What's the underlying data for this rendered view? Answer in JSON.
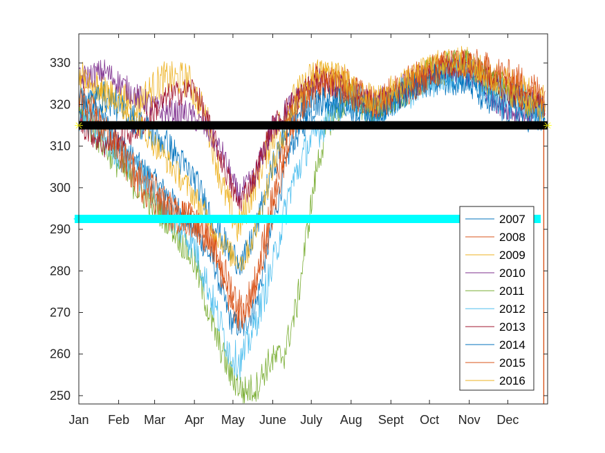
{
  "chart_data": {
    "type": "line",
    "title": "",
    "xlabel": "",
    "ylabel": "",
    "x_ticks": [
      "Jan",
      "Feb",
      "Mar",
      "Apr",
      "May",
      "June",
      "July",
      "Aug",
      "Sept",
      "Oct",
      "Nov",
      "Dec"
    ],
    "y_ticks": [
      250,
      260,
      270,
      280,
      290,
      300,
      310,
      320,
      330
    ],
    "xlim_days": [
      0,
      365
    ],
    "ylim": [
      248,
      337
    ],
    "grid": false,
    "legend_position": "bottom-right",
    "x_unit": "day of year",
    "series": [
      {
        "name": "2007",
        "color": "#0072BD",
        "points": [
          [
            0,
            322
          ],
          [
            20,
            316
          ],
          [
            45,
            306
          ],
          [
            70,
            298
          ],
          [
            90,
            290
          ],
          [
            105,
            282
          ],
          [
            118,
            268
          ],
          [
            128,
            266
          ],
          [
            138,
            272
          ],
          [
            150,
            290
          ],
          [
            165,
            310
          ],
          [
            185,
            320
          ],
          [
            205,
            322
          ],
          [
            230,
            318
          ],
          [
            250,
            322
          ],
          [
            275,
            326
          ],
          [
            300,
            328
          ],
          [
            320,
            324
          ],
          [
            340,
            322
          ],
          [
            363,
            318
          ]
        ]
      },
      {
        "name": "2008",
        "color": "#D95319",
        "points": [
          [
            0,
            320
          ],
          [
            20,
            314
          ],
          [
            45,
            304
          ],
          [
            70,
            296
          ],
          [
            90,
            292
          ],
          [
            105,
            286
          ],
          [
            118,
            272
          ],
          [
            128,
            268
          ],
          [
            138,
            276
          ],
          [
            150,
            292
          ],
          [
            165,
            314
          ],
          [
            185,
            324
          ],
          [
            205,
            326
          ],
          [
            230,
            320
          ],
          [
            250,
            322
          ],
          [
            275,
            328
          ],
          [
            300,
            330
          ],
          [
            320,
            326
          ],
          [
            340,
            324
          ],
          [
            363,
            320
          ]
        ]
      },
      {
        "name": "2009",
        "color": "#EDB120",
        "points": [
          [
            0,
            326
          ],
          [
            20,
            322
          ],
          [
            45,
            320
          ],
          [
            65,
            326
          ],
          [
            85,
            326
          ],
          [
            100,
            316
          ],
          [
            112,
            300
          ],
          [
            124,
            290
          ],
          [
            136,
            300
          ],
          [
            150,
            312
          ],
          [
            165,
            320
          ],
          [
            185,
            328
          ],
          [
            205,
            326
          ],
          [
            230,
            320
          ],
          [
            250,
            324
          ],
          [
            275,
            328
          ],
          [
            300,
            330
          ],
          [
            320,
            326
          ],
          [
            340,
            324
          ],
          [
            363,
            320
          ]
        ]
      },
      {
        "name": "2010",
        "color": "#7E2F8E",
        "points": [
          [
            0,
            326
          ],
          [
            20,
            328
          ],
          [
            45,
            322
          ],
          [
            65,
            318
          ],
          [
            85,
            318
          ],
          [
            100,
            314
          ],
          [
            112,
            308
          ],
          [
            124,
            298
          ],
          [
            136,
            302
          ],
          [
            150,
            314
          ],
          [
            165,
            320
          ],
          [
            185,
            326
          ],
          [
            205,
            324
          ],
          [
            230,
            320
          ],
          [
            250,
            324
          ],
          [
            275,
            328
          ],
          [
            300,
            328
          ],
          [
            320,
            322
          ],
          [
            340,
            318
          ],
          [
            363,
            318
          ]
        ]
      },
      {
        "name": "2011",
        "color": "#77AC30",
        "points": [
          [
            0,
            318
          ],
          [
            20,
            310
          ],
          [
            45,
            300
          ],
          [
            70,
            292
          ],
          [
            90,
            282
          ],
          [
            105,
            266
          ],
          [
            118,
            255
          ],
          [
            128,
            251
          ],
          [
            138,
            252
          ],
          [
            148,
            258
          ],
          [
            160,
            260
          ],
          [
            170,
            272
          ],
          [
            178,
            290
          ],
          [
            186,
            306
          ],
          [
            195,
            316
          ],
          [
            210,
            322
          ],
          [
            230,
            318
          ],
          [
            250,
            322
          ],
          [
            275,
            328
          ],
          [
            300,
            330
          ],
          [
            320,
            326
          ],
          [
            340,
            322
          ],
          [
            363,
            318
          ]
        ]
      },
      {
        "name": "2012",
        "color": "#4DBEEE",
        "points": [
          [
            0,
            318
          ],
          [
            20,
            312
          ],
          [
            45,
            304
          ],
          [
            70,
            294
          ],
          [
            90,
            286
          ],
          [
            105,
            272
          ],
          [
            118,
            260
          ],
          [
            126,
            258
          ],
          [
            136,
            266
          ],
          [
            150,
            280
          ],
          [
            165,
            300
          ],
          [
            178,
            310
          ],
          [
            192,
            316
          ],
          [
            210,
            322
          ],
          [
            230,
            318
          ],
          [
            250,
            322
          ],
          [
            275,
            326
          ],
          [
            300,
            328
          ],
          [
            320,
            324
          ],
          [
            340,
            322
          ],
          [
            363,
            318
          ]
        ]
      },
      {
        "name": "2013",
        "color": "#A2142F",
        "points": [
          [
            0,
            316
          ],
          [
            20,
            310
          ],
          [
            45,
            314
          ],
          [
            70,
            322
          ],
          [
            90,
            324
          ],
          [
            100,
            316
          ],
          [
            112,
            306
          ],
          [
            124,
            296
          ],
          [
            136,
            302
          ],
          [
            150,
            314
          ],
          [
            165,
            320
          ],
          [
            185,
            326
          ],
          [
            205,
            324
          ],
          [
            230,
            320
          ],
          [
            250,
            322
          ],
          [
            275,
            328
          ],
          [
            300,
            330
          ],
          [
            320,
            326
          ],
          [
            340,
            322
          ],
          [
            363,
            320
          ]
        ]
      },
      {
        "name": "2014",
        "color": "#0072BD",
        "points": [
          [
            0,
            320
          ],
          [
            20,
            322
          ],
          [
            45,
            316
          ],
          [
            70,
            310
          ],
          [
            90,
            302
          ],
          [
            105,
            292
          ],
          [
            118,
            284
          ],
          [
            128,
            282
          ],
          [
            138,
            290
          ],
          [
            150,
            304
          ],
          [
            165,
            316
          ],
          [
            185,
            322
          ],
          [
            205,
            320
          ],
          [
            230,
            318
          ],
          [
            250,
            322
          ],
          [
            275,
            326
          ],
          [
            300,
            326
          ],
          [
            320,
            320
          ],
          [
            340,
            318
          ],
          [
            363,
            316
          ]
        ]
      },
      {
        "name": "2015",
        "color": "#D95319",
        "points": [
          [
            0,
            322
          ],
          [
            20,
            314
          ],
          [
            45,
            302
          ],
          [
            70,
            294
          ],
          [
            90,
            292
          ],
          [
            105,
            286
          ],
          [
            118,
            276
          ],
          [
            128,
            270
          ],
          [
            138,
            278
          ],
          [
            150,
            296
          ],
          [
            165,
            316
          ],
          [
            185,
            326
          ],
          [
            205,
            324
          ],
          [
            230,
            320
          ],
          [
            250,
            324
          ],
          [
            275,
            328
          ],
          [
            300,
            330
          ],
          [
            320,
            328
          ],
          [
            340,
            326
          ],
          [
            363,
            322
          ]
        ]
      },
      {
        "name": "2016",
        "color": "#EDB120",
        "points": [
          [
            0,
            328
          ],
          [
            20,
            324
          ],
          [
            45,
            316
          ],
          [
            70,
            306
          ],
          [
            90,
            298
          ],
          [
            105,
            290
          ],
          [
            118,
            284
          ],
          [
            128,
            282
          ],
          [
            138,
            290
          ],
          [
            150,
            304
          ],
          [
            165,
            318
          ],
          [
            185,
            328
          ],
          [
            205,
            326
          ],
          [
            230,
            320
          ],
          [
            250,
            324
          ],
          [
            275,
            330
          ],
          [
            300,
            330
          ],
          [
            320,
            326
          ],
          [
            340,
            322
          ],
          [
            363,
            318
          ]
        ]
      }
    ],
    "reference_lines": [
      {
        "y": 315,
        "color": "#000000",
        "marker_color": "#FFFF00"
      },
      {
        "y": 292.5,
        "color": "#00FFFF"
      }
    ],
    "extra_line": {
      "x": 362,
      "color": "#D95319"
    }
  }
}
